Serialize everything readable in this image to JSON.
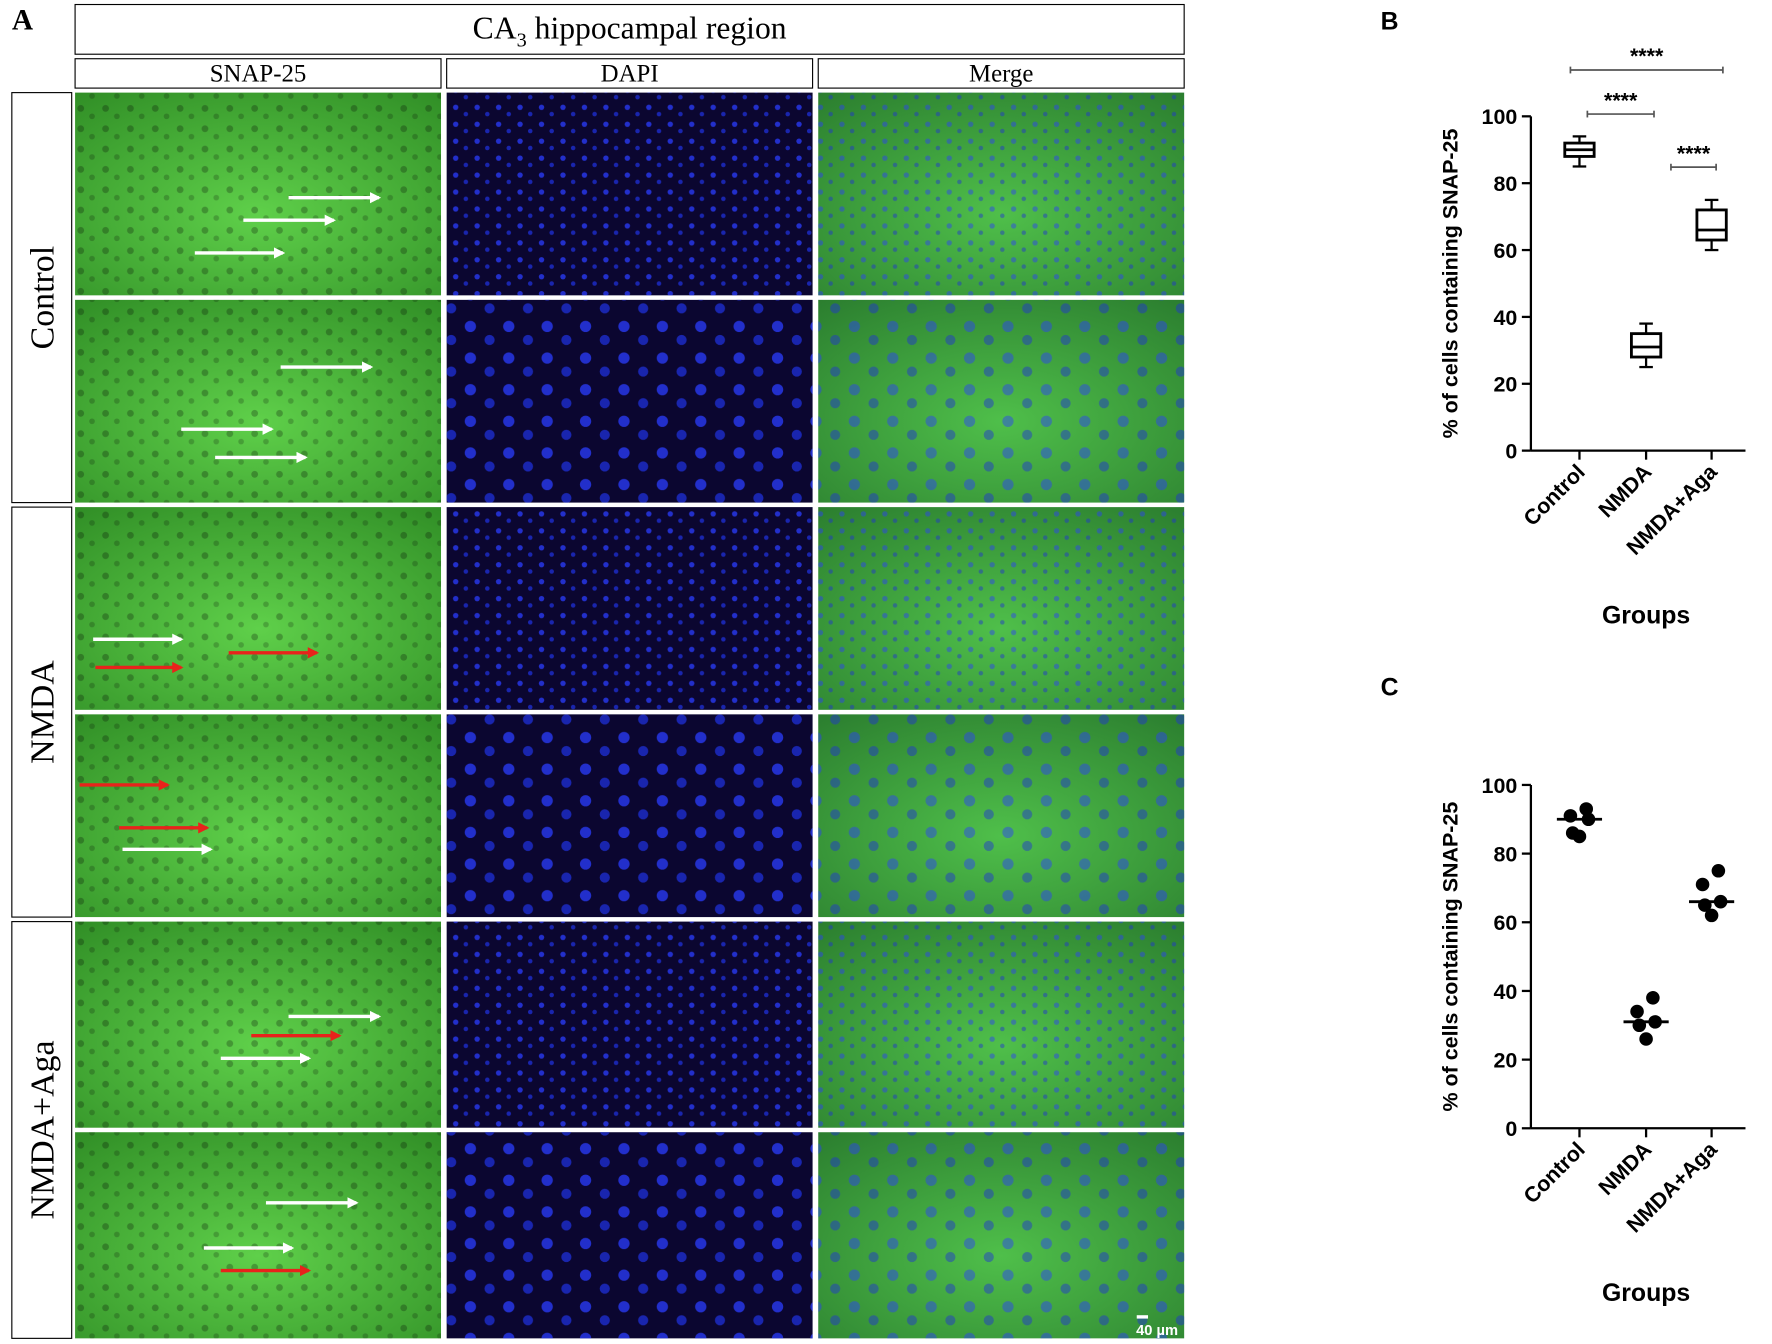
{
  "panel_a": {
    "label": "A",
    "title": {
      "main": "CA",
      "subscript": "3",
      "rest": " hippocampal region"
    },
    "columns": [
      "SNAP-25",
      "DAPI",
      "Merge"
    ],
    "rows": [
      "Control",
      "NMDA",
      "NMDA+Aga"
    ],
    "scale_bar": "40 µm"
  },
  "chart_data": [
    {
      "type": "box",
      "panel_label": "B",
      "y_label": "% of cells containing SNAP-25",
      "x_label": "Groups",
      "categories": [
        "Control",
        "NMDA",
        "NMDA+Aga"
      ],
      "min": [
        85,
        25,
        60
      ],
      "q1": [
        88,
        28,
        63
      ],
      "median": [
        90,
        31,
        66
      ],
      "q3": [
        92,
        35,
        72
      ],
      "max": [
        94,
        38,
        75
      ],
      "ylim": [
        0,
        100
      ],
      "yticks": [
        0,
        20,
        40,
        60,
        80,
        100
      ],
      "color": "#000000",
      "comparisons": [
        {
          "groups": [
            "Control",
            "NMDA+Aga"
          ],
          "label": "****"
        },
        {
          "groups": [
            "Control",
            "NMDA"
          ],
          "label": "****"
        },
        {
          "groups": [
            "NMDA",
            "NMDA+Aga"
          ],
          "label": "****"
        }
      ]
    },
    {
      "type": "dot",
      "panel_label": "C",
      "y_label": "% of cells containing SNAP-25",
      "x_label": "Groups",
      "categories": [
        "Control",
        "NMDA",
        "NMDA+Aga"
      ],
      "values": [
        [
          93,
          91,
          90,
          86,
          85
        ],
        [
          38,
          34,
          31,
          30,
          26
        ],
        [
          75,
          71,
          66,
          65,
          62
        ]
      ],
      "means": [
        90,
        31,
        66
      ],
      "ylim": [
        0,
        100
      ],
      "yticks": [
        0,
        20,
        40,
        60,
        80,
        100
      ],
      "color": "#000000"
    }
  ]
}
